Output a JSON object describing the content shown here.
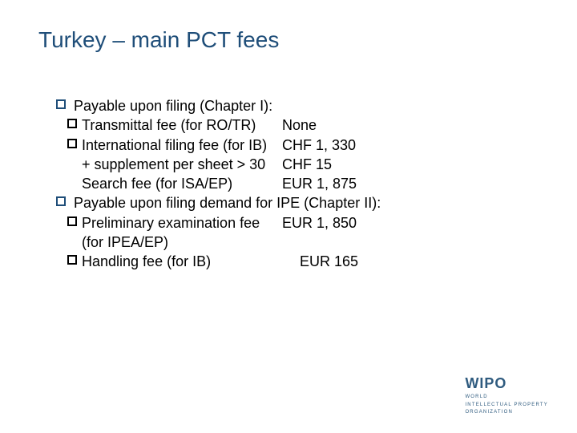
{
  "colors": {
    "title": "#1f4e79",
    "bullet_l1_border": "#1f4e79",
    "bullet_l2_border": "#000000",
    "text": "#000000",
    "wipo": "#2f5b7f",
    "background": "#ffffff"
  },
  "title": "Turkey – main PCT fees",
  "sections": [
    {
      "heading": "Payable upon filing (Chapter I):",
      "items": [
        {
          "label": "Transmittal fee (for RO/TR)",
          "value": "None",
          "bullet": true
        },
        {
          "label": "International filing fee (for IB)",
          "value": "CHF 1, 330",
          "bullet": true
        },
        {
          "label": "+ supplement per sheet > 30",
          "value": "CHF 15",
          "bullet": false
        },
        {
          "label": "Search fee (for ISA/EP)",
          "value": "EUR 1, 875",
          "bullet": false
        }
      ]
    },
    {
      "heading": "Payable upon filing demand for IPE (Chapter II):",
      "items": [
        {
          "label": "Preliminary examination fee",
          "value": "EUR 1, 850",
          "bullet": true
        },
        {
          "label": "(for IPEA/EP)",
          "value": "",
          "bullet": false
        },
        {
          "label": "Handling fee (for IB)",
          "value": "EUR 165",
          "bullet": true
        }
      ]
    }
  ],
  "footer": {
    "brand": "WIPO",
    "line1": "WORLD",
    "line2": "INTELLECTUAL PROPERTY",
    "line3": "ORGANIZATION"
  }
}
